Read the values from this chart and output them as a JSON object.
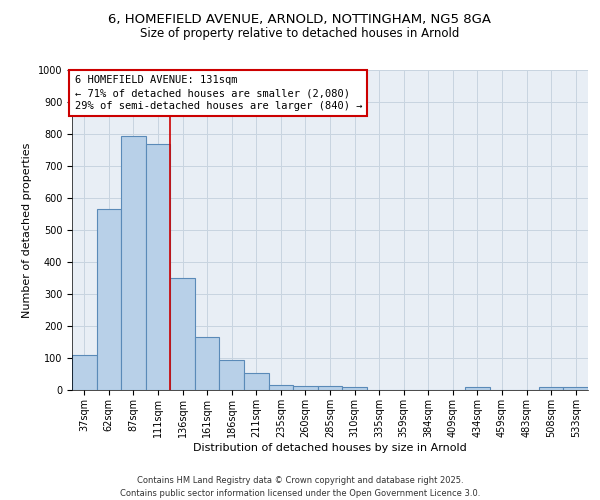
{
  "title_line1": "6, HOMEFIELD AVENUE, ARNOLD, NOTTINGHAM, NG5 8GA",
  "title_line2": "Size of property relative to detached houses in Arnold",
  "xlabel": "Distribution of detached houses by size in Arnold",
  "ylabel": "Number of detached properties",
  "categories": [
    "37sqm",
    "62sqm",
    "87sqm",
    "111sqm",
    "136sqm",
    "161sqm",
    "186sqm",
    "211sqm",
    "235sqm",
    "260sqm",
    "285sqm",
    "310sqm",
    "335sqm",
    "359sqm",
    "384sqm",
    "409sqm",
    "434sqm",
    "459sqm",
    "483sqm",
    "508sqm",
    "533sqm"
  ],
  "values": [
    110,
    565,
    795,
    770,
    350,
    165,
    95,
    52,
    17,
    12,
    12,
    8,
    0,
    0,
    0,
    0,
    8,
    0,
    0,
    8,
    8
  ],
  "bar_color": "#b8d0e8",
  "bar_edge_color": "#5a8ab8",
  "bar_linewidth": 0.8,
  "vline_x_index": 4,
  "vline_color": "#cc0000",
  "vline_linewidth": 1.2,
  "annotation_text": "6 HOMEFIELD AVENUE: 131sqm\n← 71% of detached houses are smaller (2,080)\n29% of semi-detached houses are larger (840) →",
  "annotation_box_color": "white",
  "annotation_box_edge_color": "#cc0000",
  "ylim": [
    0,
    1000
  ],
  "yticks": [
    0,
    100,
    200,
    300,
    400,
    500,
    600,
    700,
    800,
    900,
    1000
  ],
  "background_color": "white",
  "axes_bg_color": "#e8eef5",
  "grid_color": "#c8d4e0",
  "footer_line1": "Contains HM Land Registry data © Crown copyright and database right 2025.",
  "footer_line2": "Contains public sector information licensed under the Open Government Licence 3.0.",
  "title_fontsize": 9.5,
  "subtitle_fontsize": 8.5,
  "xlabel_fontsize": 8,
  "ylabel_fontsize": 8,
  "tick_fontsize": 7,
  "annotation_fontsize": 7.5,
  "footer_fontsize": 6
}
